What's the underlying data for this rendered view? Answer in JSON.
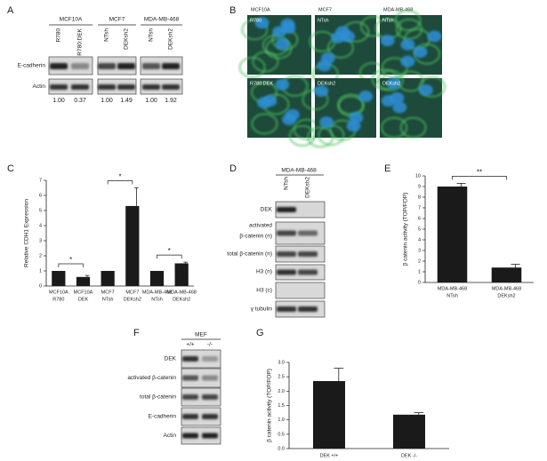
{
  "panel_labels": [
    "A",
    "B",
    "C",
    "D",
    "E",
    "F",
    "G"
  ],
  "panel_a": {
    "cell_lines": [
      "MCF10A",
      "MCF7",
      "MDA-MB-468"
    ],
    "lanes": [
      "R780",
      "R780:DEK",
      "NTsh",
      "DEKsh2",
      "NTsh",
      "DEKsh2"
    ],
    "rows": [
      "E-cadherin",
      "Actin"
    ],
    "quantification": [
      "1.00",
      "0.37",
      "1.00",
      "1.49",
      "1.00",
      "1.92"
    ]
  },
  "panel_b": {
    "cell_lines": [
      "MCF10A",
      "MCF7",
      "MDA-MB-468"
    ],
    "tiles": [
      "R780",
      "NTsh",
      "NTsh",
      "R780:DEK",
      "DEKsh2",
      "DEKsh2"
    ]
  },
  "panel_d": {
    "cell_line": "MDA-MB-468",
    "lanes": [
      "NTsh",
      "DEKsh2"
    ],
    "rows": [
      "DEK",
      "activated",
      "β-catenin (n)",
      "total β-catenin (n)",
      "H3 (n)",
      "H3 (c)",
      "γ tubulin"
    ]
  },
  "panel_f": {
    "cell_line": "MEF",
    "lanes": [
      "+/+",
      "-/-"
    ],
    "rows": [
      "DEK",
      "activated β-catenin",
      "total β-catenin",
      "E-cadherin",
      "Actin"
    ]
  },
  "chart_data": [
    {
      "type": "bar",
      "y_label": "Relative CDH1 Expression",
      "categories": [
        [
          "MCF10A",
          "R780"
        ],
        [
          "MCF10A",
          "DEK"
        ],
        [
          "MCF7",
          "NTsh"
        ],
        [
          "MCF7",
          "DEKsh2"
        ],
        [
          "MDA-MB-468",
          "NTsh"
        ],
        [
          "MDA-MB-468",
          "DEKsh2"
        ]
      ],
      "values": [
        1.0,
        0.6,
        1.0,
        5.3,
        1.0,
        1.5
      ],
      "errors": [
        null,
        0.1,
        null,
        1.2,
        null,
        0.08
      ],
      "color": "#1a1a1a",
      "ylim": [
        0,
        7
      ],
      "yticks": [
        0,
        1,
        2,
        3,
        4,
        5,
        6,
        7
      ],
      "annotations": [
        "*",
        "*",
        "*"
      ]
    },
    {
      "type": "bar",
      "y_label": "β catenin activity (TOP/FOP)",
      "categories": [
        [
          "MDA-MB-468",
          "NTsh"
        ],
        [
          "MDA-MB-468",
          "DEKsh2"
        ]
      ],
      "values": [
        9.0,
        1.4
      ],
      "errors": [
        0.3,
        0.3
      ],
      "color": "#1a1a1a",
      "ylim": [
        0,
        10
      ],
      "yticks": [
        0,
        1,
        2,
        3,
        4,
        5,
        6,
        7,
        8,
        9,
        10
      ],
      "annotations": [
        "**"
      ]
    },
    {
      "type": "bar",
      "y_label": "β catenin activity (TOP/FOP)",
      "categories": [
        "DEK +/+",
        "DEK -/-"
      ],
      "values": [
        2.35,
        1.18
      ],
      "errors": [
        0.45,
        0.07
      ],
      "color": "#1a1a1a",
      "ylim": [
        0,
        3
      ],
      "yticks": [
        {
          "value": 0,
          "label": "0.0"
        },
        {
          "value": 0.5,
          "label": "0.5"
        },
        {
          "value": 1,
          "label": "1.0"
        },
        {
          "value": 1.5,
          "label": "1.5"
        },
        {
          "value": 2,
          "label": "2.0"
        },
        {
          "value": 2.5,
          "label": "2.5"
        },
        {
          "value": 3,
          "label": "3.0"
        }
      ]
    }
  ]
}
